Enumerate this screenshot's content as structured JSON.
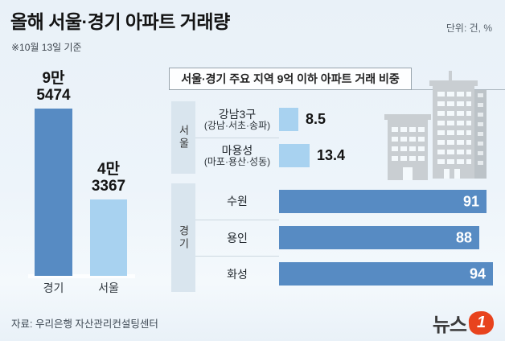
{
  "page": {
    "title": "올해 서울·경기 아파트 거래량",
    "note": "※10월 13일 기준",
    "unit_label": "단위: 건, %",
    "source": "자료: 우리은행 자산관리컨설팅센터",
    "logo": {
      "text": "뉴스",
      "number": "1"
    }
  },
  "colors": {
    "dark_blue": "#578bc3",
    "light_blue": "#a8d2f0",
    "group_box": "#d9e5ee",
    "building_gray": "#c9ced2",
    "logo_red": "#e8431d",
    "background": "#edf4fa"
  },
  "chart_data": [
    {
      "type": "bar",
      "title": "올해 서울·경기 아파트 거래량",
      "unit": "건",
      "note": "※10월 13일 기준",
      "categories": [
        "경기",
        "서울"
      ],
      "values": [
        95474,
        43367
      ],
      "value_labels": [
        [
          "9만",
          "5474"
        ],
        [
          "4만",
          "3367"
        ]
      ],
      "bar_colors": [
        "#578bc3",
        "#a8d2f0"
      ],
      "ylim": [
        0,
        100000
      ],
      "grid": false
    },
    {
      "type": "bar",
      "orientation": "horizontal",
      "title": "서울·경기 주요 지역 9억 이하 아파트 거래 비중",
      "unit": "%",
      "xlim": [
        0,
        100
      ],
      "grid": false,
      "groups": [
        {
          "label": "서울",
          "bar_color": "#a8d2f0",
          "rows": [
            {
              "name": "강남3구",
              "sub": "(강남·서초·송파)",
              "value": 8.5,
              "value_position": "outside"
            },
            {
              "name": "마용성",
              "sub": "(마포·용산·성동)",
              "value": 13.4,
              "value_position": "outside"
            }
          ]
        },
        {
          "label": "경기",
          "bar_color": "#578bc3",
          "rows": [
            {
              "name": "수원",
              "sub": "",
              "value": 91,
              "value_position": "inside"
            },
            {
              "name": "용인",
              "sub": "",
              "value": 88,
              "value_position": "inside"
            },
            {
              "name": "화성",
              "sub": "",
              "value": 94,
              "value_position": "inside"
            }
          ]
        }
      ]
    }
  ]
}
